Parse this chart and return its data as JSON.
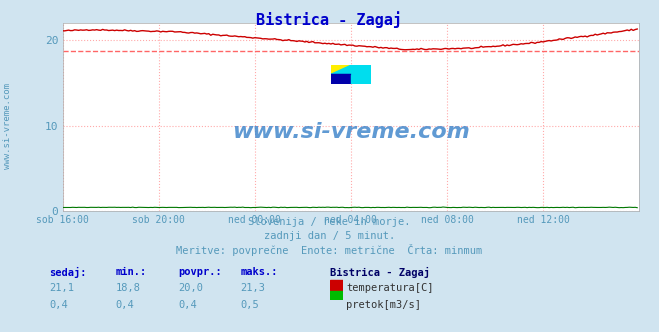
{
  "title": "Bistrica - Zagaj",
  "title_color": "#0000cc",
  "bg_color": "#d0e4f0",
  "plot_bg_color": "#ffffff",
  "grid_color": "#ffaaaa",
  "x_labels": [
    "sob 16:00",
    "sob 20:00",
    "ned 00:00",
    "ned 04:00",
    "ned 08:00",
    "ned 12:00"
  ],
  "x_ticks_pos": [
    0,
    48,
    96,
    144,
    192,
    240
  ],
  "n_points": 288,
  "y_min": 0,
  "y_max": 22,
  "y_ticks": [
    0,
    10,
    20
  ],
  "temp_min": 18.8,
  "temp_max": 21.3,
  "temp_color": "#cc0000",
  "temp_min_line_color": "#ff6666",
  "flow_color": "#007700",
  "watermark_text": "www.si-vreme.com",
  "watermark_color": "#4488cc",
  "subtitle1": "Slovenija / reke in morje.",
  "subtitle2": "zadnji dan / 5 minut.",
  "subtitle3": "Meritve: povprečne  Enote: metrične  Črta: minmum",
  "subtitle_color": "#5599bb",
  "table_header": [
    "sedaj:",
    "min.:",
    "povpr.:",
    "maks.:"
  ],
  "table_header_color": "#0000cc",
  "table_row1": [
    "21,1",
    "18,8",
    "20,0",
    "21,3"
  ],
  "table_row2": [
    "0,4",
    "0,4",
    "0,4",
    "0,5"
  ],
  "table_values_color": "#5599bb",
  "legend_title": "Bistrica - Zagaj",
  "legend_title_color": "#000066",
  "legend_temp_color": "#cc0000",
  "legend_flow_color": "#00bb00",
  "ytick_label_color": "#5599bb",
  "xtick_label_color": "#5599bb",
  "left_label_color": "#5599bb"
}
